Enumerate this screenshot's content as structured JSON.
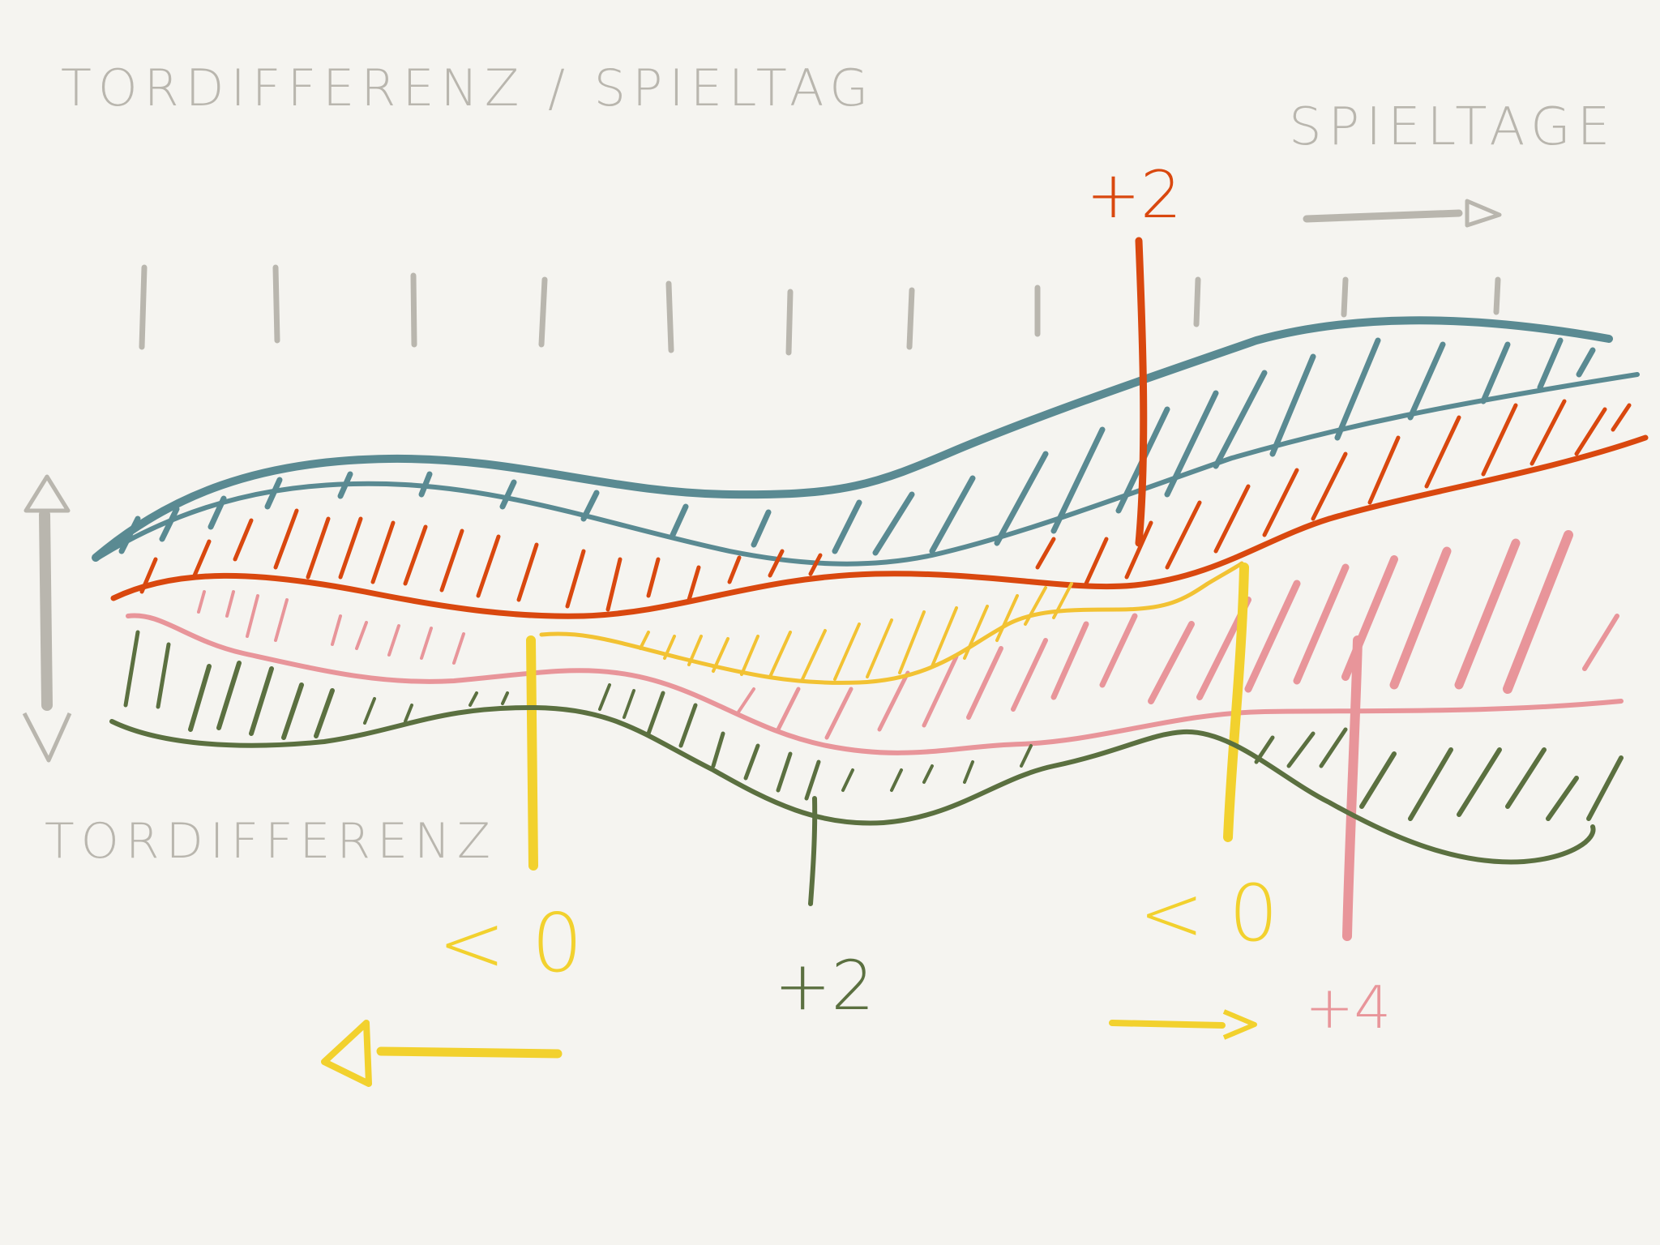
{
  "title": "TORDIFFERENZ / SPIELTAG",
  "x_axis_label": "SPIELTAGE",
  "y_axis_label": "TORDIFFERENZ",
  "annotations": [
    {
      "id": "orange-marker",
      "text": "+2",
      "color": "#d9480f"
    },
    {
      "id": "yellow-left-marker",
      "text": "< 0",
      "color": "#f2d12e"
    },
    {
      "id": "green-marker",
      "text": "+2",
      "color": "#5b7040"
    },
    {
      "id": "yellow-right-marker",
      "text": "< 0",
      "color": "#f2d12e"
    },
    {
      "id": "pink-marker",
      "text": "+4",
      "color": "#e8959a"
    }
  ],
  "colors": {
    "background": "#f5f4f0",
    "teal": "#5a8a92",
    "orange": "#d9480f",
    "pink": "#e8959a",
    "yellow": "#f2c233",
    "green": "#5b7040",
    "gray": "#b9b6ae"
  },
  "icons": {
    "vertical_axis": "double-arrow-up-down-icon",
    "horizontal_axis": "arrow-right-icon",
    "yellow_left": "arrow-left-icon",
    "yellow_right": "arrow-right-icon"
  }
}
